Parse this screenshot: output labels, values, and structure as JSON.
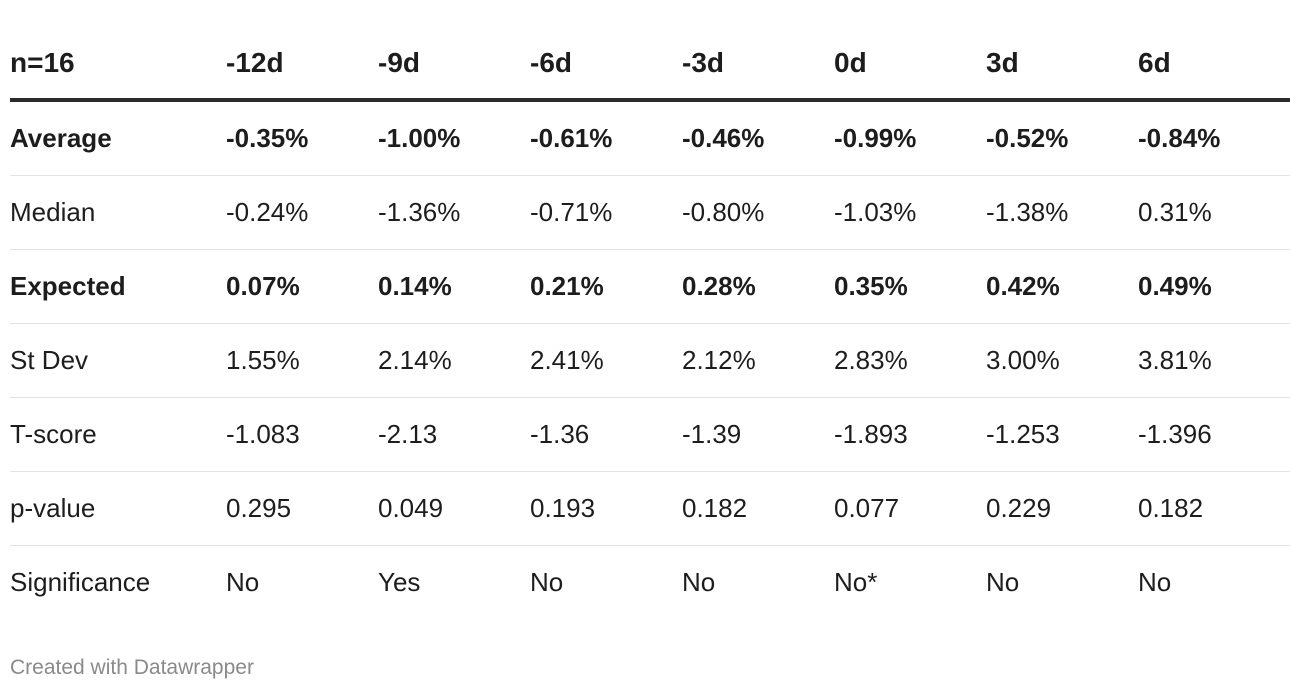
{
  "chart_data": {
    "type": "table",
    "columns": [
      "n=16",
      "-12d",
      "-9d",
      "-6d",
      "-3d",
      "0d",
      "3d",
      "6d"
    ],
    "rows": [
      {
        "label": "Average",
        "bold": true,
        "values": [
          "-0.35%",
          "-1.00%",
          "-0.61%",
          "-0.46%",
          "-0.99%",
          "-0.52%",
          "-0.84%"
        ]
      },
      {
        "label": "Median",
        "bold": false,
        "values": [
          "-0.24%",
          "-1.36%",
          "-0.71%",
          "-0.80%",
          "-1.03%",
          "-1.38%",
          "0.31%"
        ]
      },
      {
        "label": "Expected",
        "bold": true,
        "values": [
          "0.07%",
          "0.14%",
          "0.21%",
          "0.28%",
          "0.35%",
          "0.42%",
          "0.49%"
        ]
      },
      {
        "label": "St Dev",
        "bold": false,
        "values": [
          "1.55%",
          "2.14%",
          "2.41%",
          "2.12%",
          "2.83%",
          "3.00%",
          "3.81%"
        ]
      },
      {
        "label": "T-score",
        "bold": false,
        "values": [
          "-1.083",
          "-2.13",
          "-1.36",
          "-1.39",
          "-1.893",
          "-1.253",
          "-1.396"
        ]
      },
      {
        "label": "p-value",
        "bold": false,
        "values": [
          "0.295",
          "0.049",
          "0.193",
          "0.182",
          "0.077",
          "0.229",
          "0.182"
        ]
      },
      {
        "label": "Significance",
        "bold": false,
        "values": [
          "No",
          "Yes",
          "No",
          "No",
          "No*",
          "No",
          "No"
        ]
      }
    ]
  },
  "footer": {
    "credit": "Created with Datawrapper"
  },
  "colors": {
    "text": "#1d1d1d",
    "header_rule": "#2b2b2b",
    "row_rule": "#e3e3e3",
    "footer_text": "#8a8a8a"
  }
}
